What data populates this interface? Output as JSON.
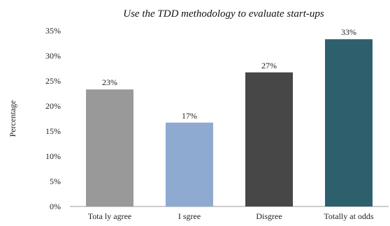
{
  "chart_data": {
    "type": "bar",
    "title": "Use the TDD methodology to evaluate start-ups",
    "ylabel": "Percentage",
    "xlabel": "",
    "categories": [
      "Tota ly agree",
      "I sgree",
      "Disgree",
      "Totally at odds"
    ],
    "values": [
      23.3,
      16.7,
      26.7,
      33.3
    ],
    "data_labels": [
      "23%",
      "17%",
      "27%",
      "33%"
    ],
    "colors": [
      "#999999",
      "#8eaad0",
      "#474747",
      "#2e5f6c"
    ],
    "ylim": [
      0,
      35
    ],
    "yticks": [
      0,
      5,
      10,
      15,
      20,
      25,
      30,
      35
    ],
    "ytick_labels": [
      "0%",
      "5%",
      "10%",
      "15%",
      "20%",
      "25%",
      "30%",
      "35%"
    ],
    "grid": false,
    "legend": "none"
  }
}
